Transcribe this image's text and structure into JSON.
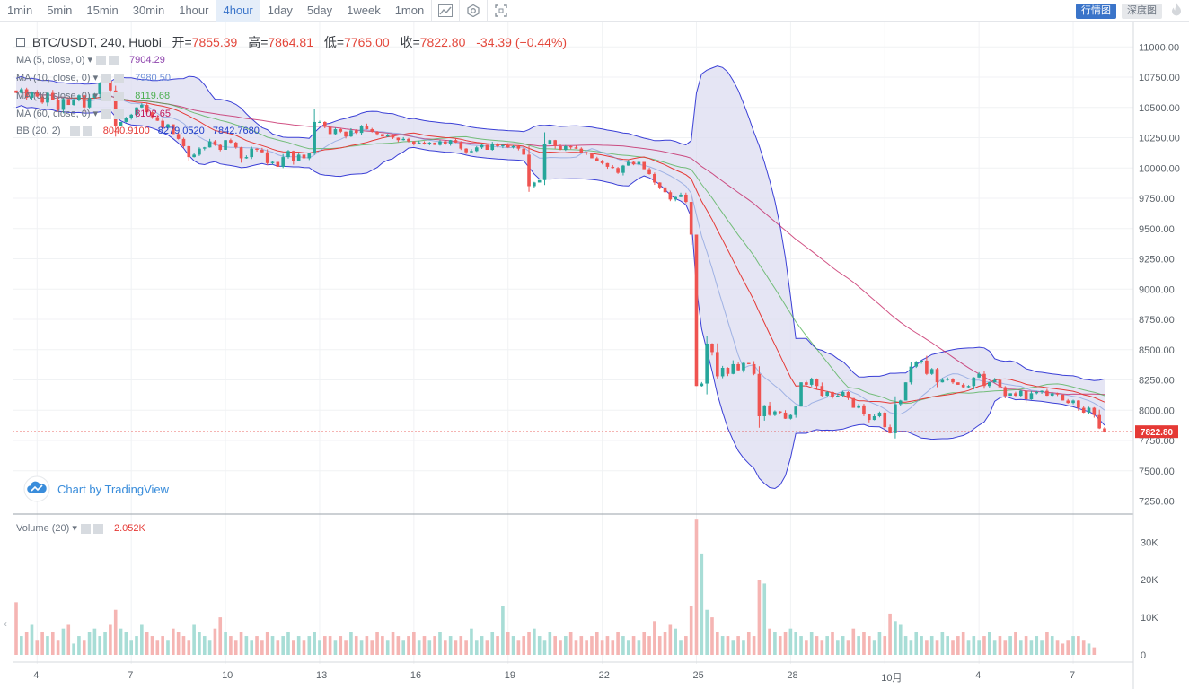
{
  "toolbar": {
    "timeframes": [
      "1min",
      "5min",
      "15min",
      "30min",
      "1hour",
      "4hour",
      "1day",
      "5day",
      "1week",
      "1mon"
    ],
    "active": "4hour",
    "tab_chart": "行情图",
    "tab_depth": "深度图"
  },
  "legend": {
    "symbol": "BTC/USDT, 240, Huobi",
    "open_label": "开",
    "open": "7855.39",
    "high_label": "高",
    "high": "7864.81",
    "low_label": "低",
    "low": "7765.00",
    "close_label": "收",
    "close": "7822.80",
    "change": "-34.39 (−0.44%)"
  },
  "indicators": [
    {
      "name": "MA (5, close, 0)",
      "value": "7904.29",
      "color": "#8e44ad"
    },
    {
      "name": "MA (10, close, 0)",
      "value": "7980.50",
      "color": "#6f8fd8"
    },
    {
      "name": "MA (30, close, 0)",
      "value": "8119.68",
      "color": "#4caf50"
    },
    {
      "name": "MA (60, close, 0)",
      "value": "8102.65",
      "color": "#c2185b"
    },
    {
      "name": "BB (20, 2)",
      "value": "8040.9100",
      "value2": "8279.0520",
      "value3": "7842.7680",
      "color": "#e53935",
      "color2": "#1e3cc8",
      "color3": "#1e3cc8"
    }
  ],
  "volume": {
    "name": "Volume (20)",
    "value": "2.052K"
  },
  "watermark": "Chart by TradingView",
  "price_tag": "7822.80",
  "colors": {
    "up": "#26a69a",
    "down": "#ef5350",
    "bb": "#3a3fd6",
    "bbfill": "#dcdcf0"
  },
  "chart_data": {
    "type": "candlestick",
    "price_axis": {
      "ticks": [
        11000,
        10750,
        10500,
        10250,
        10000,
        9750,
        9500,
        9250,
        9000,
        8750,
        8500,
        8250,
        8000,
        7750,
        7500,
        7250
      ],
      "range": [
        7150,
        11150
      ]
    },
    "volume_axis": {
      "ticks": [
        "30K",
        "20K",
        "10K",
        "0"
      ],
      "range": [
        0,
        37000
      ]
    },
    "x_labels": [
      "4",
      "7",
      "10",
      "13",
      "16",
      "19",
      "22",
      "25",
      "28",
      "10月",
      "4",
      "7"
    ],
    "x_label_index": [
      4,
      22,
      40,
      58,
      76,
      94,
      112,
      130,
      148,
      166,
      184,
      202
    ],
    "last_price": 7822.8,
    "close_series": [
      10620,
      10650,
      10580,
      10630,
      10590,
      10540,
      10620,
      10560,
      10480,
      10570,
      10520,
      10560,
      10600,
      10500,
      10580,
      10610,
      10700,
      10720,
      10640,
      10350,
      10380,
      10410,
      10440,
      10500,
      10520,
      10460,
      10420,
      10390,
      10330,
      10360,
      10280,
      10240,
      10180,
      10090,
      10110,
      10160,
      10170,
      10220,
      10190,
      10150,
      10230,
      10210,
      10170,
      10080,
      10090,
      10160,
      10150,
      10130,
      10040,
      10050,
      10010,
      10090,
      10140,
      10060,
      10110,
      10080,
      10120,
      10380,
      10380,
      10340,
      10280,
      10320,
      10300,
      10260,
      10310,
      10290,
      10350,
      10320,
      10300,
      10280,
      10260,
      10270,
      10250,
      10230,
      10240,
      10220,
      10200,
      10210,
      10200,
      10210,
      10190,
      10220,
      10200,
      10230,
      10210,
      10160,
      10130,
      10140,
      10170,
      10190,
      10150,
      10200,
      10180,
      10190,
      10170,
      10180,
      10160,
      10110,
      9850,
      9880,
      9900,
      10200,
      10230,
      10180,
      10150,
      10180,
      10170,
      10160,
      10130,
      10120,
      10080,
      10060,
      10040,
      10010,
      10000,
      9960,
      10020,
      10050,
      10030,
      10050,
      9990,
      9950,
      9880,
      9840,
      9800,
      9740,
      9760,
      9780,
      9720,
      9450,
      8200,
      8220,
      8550,
      8480,
      8280,
      8350,
      8300,
      8380,
      8330,
      8390,
      8380,
      8300,
      7950,
      8040,
      7960,
      7990,
      7980,
      7930,
      7960,
      8030,
      8230,
      8210,
      8260,
      8200,
      8120,
      8150,
      8110,
      8120,
      8150,
      8100,
      8020,
      8040,
      7970,
      7920,
      7950,
      7980,
      7860,
      7810,
      8050,
      8080,
      8230,
      8360,
      8400,
      8410,
      8300,
      8340,
      8230,
      8250,
      8260,
      8230,
      8210,
      8190,
      8200,
      8270,
      8300,
      8200,
      8230,
      8250,
      8190,
      8120,
      8140,
      8120,
      8160,
      8090,
      8140,
      8150,
      8160,
      8120,
      8140,
      8130,
      8080,
      8060,
      8080,
      8020,
      7980,
      8020,
      7960,
      7850,
      7822.8
    ],
    "volume_series": [
      14,
      5,
      6,
      8,
      4,
      6,
      5,
      6,
      4,
      7,
      8,
      3,
      5,
      4,
      6,
      7,
      5,
      6,
      8,
      12,
      7,
      6,
      4,
      5,
      8,
      6,
      5,
      4,
      5,
      4,
      7,
      6,
      5,
      4,
      8,
      6,
      5,
      4,
      7,
      10,
      6,
      5,
      4,
      6,
      5,
      4,
      5,
      4,
      6,
      5,
      4,
      5,
      6,
      4,
      5,
      4,
      5,
      6,
      4,
      5,
      5,
      4,
      5,
      4,
      6,
      5,
      4,
      5,
      4,
      6,
      5,
      4,
      6,
      5,
      4,
      5,
      6,
      4,
      5,
      4,
      5,
      6,
      4,
      5,
      4,
      5,
      4,
      7,
      4,
      5,
      4,
      6,
      5,
      13,
      6,
      5,
      4,
      5,
      6,
      7,
      5,
      4,
      6,
      5,
      4,
      5,
      6,
      4,
      5,
      4,
      5,
      6,
      4,
      5,
      4,
      6,
      5,
      4,
      5,
      4,
      6,
      5,
      9,
      5,
      6,
      8,
      7,
      4,
      5,
      13,
      36,
      27,
      12,
      10,
      6,
      5,
      5,
      4,
      5,
      4,
      6,
      5,
      20,
      19,
      7,
      6,
      5,
      6,
      7,
      6,
      5,
      4,
      6,
      5,
      4,
      5,
      6,
      4,
      5,
      4,
      7,
      5,
      6,
      5,
      4,
      6,
      5,
      11,
      9,
      8,
      5,
      4,
      6,
      5,
      4,
      5,
      4,
      6,
      5,
      4,
      5,
      6,
      4,
      5,
      4,
      5,
      6,
      4,
      5,
      4,
      5,
      6,
      4,
      5,
      4,
      5,
      4,
      6,
      5,
      4,
      3,
      4,
      5,
      5,
      4,
      3,
      2
    ]
  }
}
